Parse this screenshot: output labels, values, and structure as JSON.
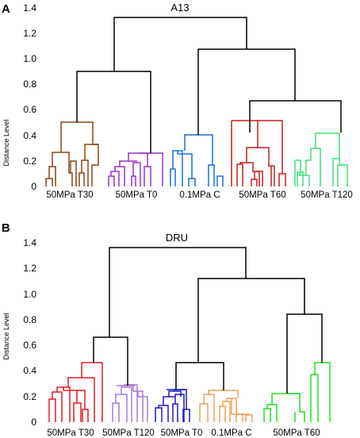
{
  "chart_data": [
    {
      "panel": "A",
      "type": "dendrogram",
      "title": "A13",
      "ylabel": "Distance Level",
      "ylim": [
        0,
        1.4
      ],
      "yticks": [
        "0",
        "0.2",
        "0.4",
        "0.6",
        "0.8",
        "1.0",
        "1.2",
        "1.4"
      ],
      "groups": [
        {
          "label": "50MPa T30",
          "color": "#8B4513"
        },
        {
          "label": "50MPa T0",
          "color": "#9932CC"
        },
        {
          "label": "0.1MPa C",
          "color": "#1F6FD0"
        },
        {
          "label": "50MPa T60",
          "color": "#C41E1E"
        },
        {
          "label": "50MPa T120",
          "color": "#3CE07A"
        }
      ],
      "top_merges": [
        {
          "joins": [
            "50MPa T30",
            "50MPa T0"
          ],
          "height": 0.9
        },
        {
          "joins": [
            "50MPa T60",
            "50MPa T120"
          ],
          "height": 0.68
        },
        {
          "joins": [
            "0.1MPa C",
            "50MPa T60 + 50MPa T120"
          ],
          "height": 1.08
        },
        {
          "joins": [
            "50MPa T30 + 50MPa T0",
            "0.1MPa C + 50MPa T60 + 50MPa T120"
          ],
          "height": 1.32
        }
      ]
    },
    {
      "panel": "B",
      "type": "dendrogram",
      "title": "DRU",
      "ylabel": "Distance Level",
      "ylim": [
        0,
        1.4
      ],
      "yticks": [
        "0",
        "0.2",
        "0.4",
        "0.6",
        "0.8",
        "1.0",
        "1.2",
        "1.4"
      ],
      "groups": [
        {
          "label": "50MPa T30",
          "color": "#E01B24"
        },
        {
          "label": "50MPa T120",
          "color": "#A77BD6"
        },
        {
          "label": "50MPa T0",
          "color": "#1C1CB8"
        },
        {
          "label": "0.1MPa C",
          "color": "#F0A055"
        },
        {
          "label": "50MPa T60",
          "color": "#22E022"
        }
      ],
      "top_merges": [
        {
          "joins": [
            "50MPa T30",
            "50MPa T120"
          ],
          "height": 0.67
        },
        {
          "joins": [
            "50MPa T0",
            "0.1MPa C"
          ],
          "height": 0.48
        },
        {
          "joins": [
            "50MPa T0 + 0.1MPa C",
            "50MPa T60"
          ],
          "height": 1.12
        },
        {
          "joins": [
            "50MPa T30 + 50MPa T120",
            "50MPa T0 + 0.1MPa C + 50MPa T60"
          ],
          "height": 1.38
        }
      ]
    }
  ]
}
